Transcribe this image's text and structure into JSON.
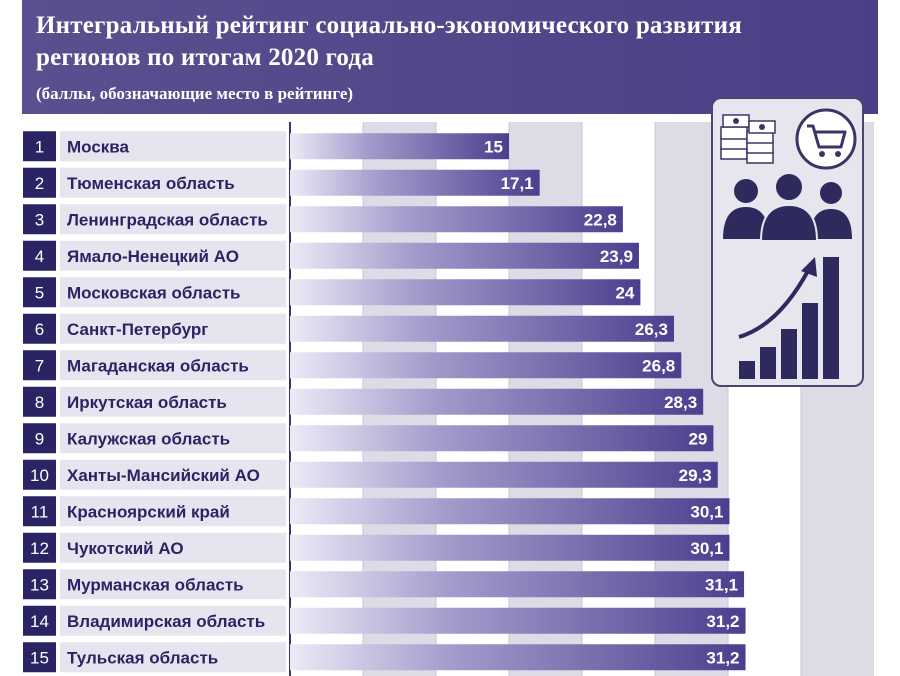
{
  "header": {
    "title_line_1": "Интегральный рейтинг социально-экономического развития",
    "title_line_2": "регионов по итогам 2020 года",
    "subtitle": "(баллы, обозначающие место в рейтинге)"
  },
  "colors": {
    "header_bg": "#4f4388",
    "bar_start": "#eceaf6",
    "bar_end": "#4a3f8e",
    "rank_box": "#2a2464",
    "label_bg": "#e6e5ef",
    "stripe_light": "#dcdbe6",
    "stripe_white": "#ffffff"
  },
  "illustration": {
    "icons": [
      "money-stack-icon",
      "shopping-cart-icon",
      "people-group-icon",
      "growth-chart-icon"
    ]
  },
  "chart_data": {
    "type": "bar",
    "orientation": "horizontal",
    "title": "Интегральный рейтинг социально-экономического развития регионов по итогам 2020 года",
    "subtitle": "(баллы, обозначающие место в рейтинге)",
    "ranks": [
      "1",
      "2",
      "3",
      "4",
      "5",
      "6",
      "7",
      "8",
      "9",
      "10",
      "11",
      "12",
      "13",
      "14",
      "15"
    ],
    "categories": [
      "Москва",
      "Тюменская область",
      "Ленинградская область",
      "Ямало-Ненецкий АО",
      "Московская область",
      "Санкт-Петербург",
      "Магаданская область",
      "Иркутская область",
      "Калужская область",
      "Ханты-Мансийский АО",
      "Красноярский край",
      "Чукотский АО",
      "Мурманская область",
      "Владимирская область",
      "Тульская область"
    ],
    "values": [
      15,
      17.1,
      22.8,
      23.9,
      24,
      26.3,
      26.8,
      28.3,
      29,
      29.3,
      30.1,
      30.1,
      31.1,
      31.2,
      31.2
    ],
    "value_labels": [
      "15",
      "17,1",
      "22,8",
      "23,9",
      "24",
      "26,3",
      "26,8",
      "28,3",
      "29",
      "29,3",
      "30,1",
      "30,1",
      "31,1",
      "31,2",
      "31,2"
    ],
    "xlim": [
      0,
      40
    ],
    "grid": true,
    "legend": "none"
  }
}
